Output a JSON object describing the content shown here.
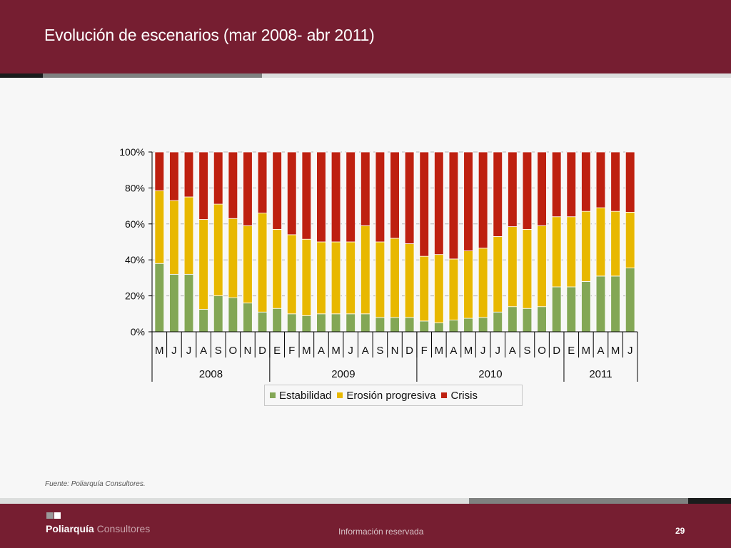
{
  "header": {
    "title": "Evolución de escenarios (mar 2008- abr 2011)"
  },
  "footer": {
    "source": "Fuente: Poliarquía Consultores.",
    "logo_bold": "Poliarquía",
    "logo_light": "Consultores",
    "center_text": "Información reservada",
    "page_number": "29"
  },
  "colors": {
    "brand": "#761e31",
    "estabilidad": "#83a755",
    "erosion": "#e8b800",
    "crisis": "#be2010"
  },
  "chart_data": {
    "type": "bar",
    "stacked": true,
    "percent_stacked": true,
    "title": "",
    "xlabel": "",
    "ylabel": "",
    "ylim": [
      0,
      100
    ],
    "yticks": [
      "0%",
      "20%",
      "40%",
      "60%",
      "80%",
      "100%"
    ],
    "grid": true,
    "legend_position": "bottom",
    "categories": [
      "M",
      "J",
      "J",
      "A",
      "S",
      "O",
      "N",
      "D",
      "E",
      "F",
      "M",
      "A",
      "M",
      "J",
      "A",
      "S",
      "N",
      "D",
      "F",
      "M",
      "A",
      "M",
      "J",
      "J",
      "A",
      "S",
      "O",
      "D",
      "E",
      "M",
      "A",
      "M",
      "J"
    ],
    "year_groups": [
      {
        "label": "2008",
        "count": 8
      },
      {
        "label": "2009",
        "count": 10
      },
      {
        "label": "2010",
        "count": 10
      },
      {
        "label": "2011",
        "count": 5
      }
    ],
    "series": [
      {
        "name": "Estabilidad",
        "color": "#83a755",
        "values": [
          38,
          32,
          32,
          12.5,
          20,
          19,
          16,
          11,
          13,
          10,
          9,
          10,
          10,
          10,
          10,
          8,
          8,
          8,
          6,
          5,
          6.5,
          7.5,
          8,
          11,
          14,
          13,
          14,
          25,
          25,
          28,
          31,
          31,
          35.5
        ]
      },
      {
        "name": "Erosión progresiva",
        "color": "#e8b800",
        "values": [
          40.5,
          41,
          43,
          50,
          51,
          44,
          43,
          55,
          44,
          44,
          42.5,
          40,
          40,
          40,
          49,
          42,
          44,
          41,
          36,
          38,
          34,
          37.5,
          38.5,
          42,
          44.5,
          44,
          45,
          39,
          39,
          39,
          38,
          36,
          31
        ]
      },
      {
        "name": "Crisis",
        "color": "#be2010",
        "values": [
          21.5,
          27,
          25,
          37.5,
          29,
          37,
          41,
          34,
          43,
          46,
          48.5,
          50,
          50,
          50,
          41,
          50,
          48,
          51,
          58,
          57,
          59.5,
          55,
          53.5,
          47,
          41.5,
          43,
          41,
          36,
          36,
          33,
          31,
          33,
          33.5
        ]
      }
    ]
  }
}
